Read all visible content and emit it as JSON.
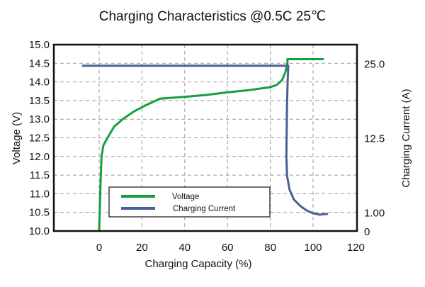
{
  "chart_data": {
    "type": "line",
    "title": "Charging Characteristics @0.5C 25℃",
    "xlabel": "Charging Capacity (%)",
    "ylabel": "Voltage (V)",
    "y2label": "Charging Current (A)",
    "xlim": [
      -21,
      120
    ],
    "ylim": [
      10.0,
      15.0
    ],
    "x_ticks": [
      0,
      20,
      40,
      60,
      80,
      100,
      120
    ],
    "x_tick_labels": [
      "0",
      "20",
      "40",
      "60",
      "80",
      "100",
      "120"
    ],
    "y_ticks": [
      10.0,
      10.5,
      11.0,
      11.5,
      12.0,
      12.5,
      13.0,
      13.5,
      14.0,
      14.5,
      15.0
    ],
    "y_tick_labels": [
      "10.0",
      "10.5",
      "11.0",
      "11.5",
      "12.0",
      "12.5",
      "13.0",
      "13.5",
      "14.0",
      "14.5",
      "15.0"
    ],
    "y2_ticks": [
      0,
      1.0,
      12.5,
      25.0
    ],
    "y2_tick_labels": [
      "0",
      "1.00",
      "12.5",
      "25.0"
    ],
    "grid": true,
    "legend_position": "bottom-left",
    "series": [
      {
        "name": "Voltage",
        "axis": "left",
        "color": "#13a03c",
        "points": [
          [
            0,
            10.0
          ],
          [
            0.3,
            10.6
          ],
          [
            0.6,
            11.2
          ],
          [
            1.1,
            12.0
          ],
          [
            2,
            12.3
          ],
          [
            3.9,
            12.5
          ],
          [
            7,
            12.8
          ],
          [
            11,
            13.0
          ],
          [
            16,
            13.2
          ],
          [
            22,
            13.38
          ],
          [
            28.5,
            13.55
          ],
          [
            40,
            13.6
          ],
          [
            50,
            13.65
          ],
          [
            60,
            13.72
          ],
          [
            70,
            13.78
          ],
          [
            80,
            13.86
          ],
          [
            83,
            13.92
          ],
          [
            85.5,
            14.05
          ],
          [
            87,
            14.25
          ],
          [
            88,
            14.5
          ],
          [
            88,
            14.61
          ],
          [
            105,
            14.61
          ]
        ]
      },
      {
        "name": "Charging Current",
        "axis": "right",
        "color": "#4a5f96",
        "points": [
          [
            -8,
            24.6
          ],
          [
            88.4,
            24.6
          ],
          [
            88.1,
            22
          ],
          [
            87.8,
            18
          ],
          [
            87.6,
            12.5
          ],
          [
            87.5,
            9.6
          ],
          [
            87.8,
            6.7
          ],
          [
            89,
            4.5
          ],
          [
            91,
            3.0
          ],
          [
            94,
            2.0
          ],
          [
            97,
            1.3
          ],
          [
            100,
            0.95
          ],
          [
            103,
            0.88
          ],
          [
            107,
            0.92
          ]
        ]
      }
    ]
  }
}
